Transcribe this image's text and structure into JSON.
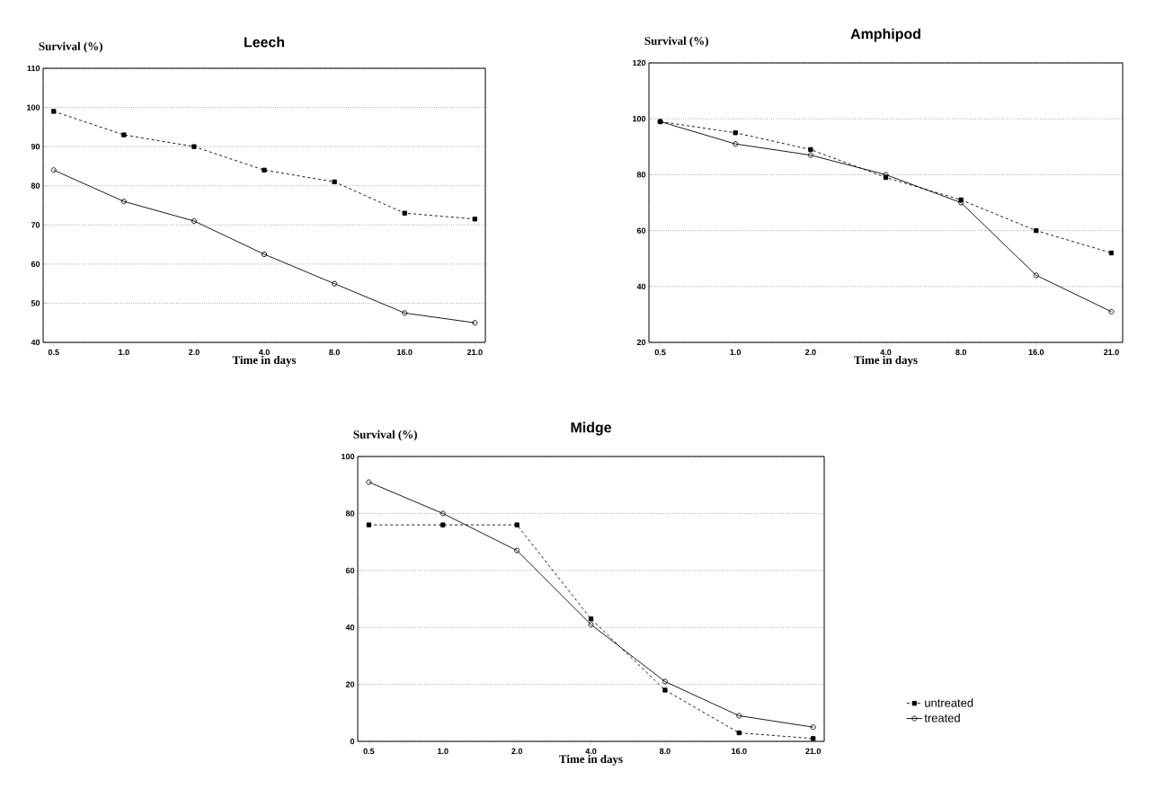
{
  "chart_data": [
    {
      "type": "line",
      "title": "Leech",
      "xlabel": "Time in days",
      "ylabel": "Survival (%)",
      "categories": [
        "0.5",
        "1.0",
        "2.0",
        "4.0",
        "8.0",
        "16.0",
        "21.0"
      ],
      "ylim": [
        40,
        110
      ],
      "yticks": [
        40,
        50,
        60,
        70,
        80,
        90,
        100,
        110
      ],
      "grid": "y",
      "legend": false,
      "series": [
        {
          "color": "#000000",
          "marker": "square",
          "line_style": "dashed",
          "values": [
            99,
            93,
            90,
            84,
            81,
            73,
            71.5
          ]
        },
        {
          "color": "#000000",
          "marker": "circle",
          "line_style": "solid",
          "values": [
            84,
            76,
            71,
            62.5,
            55,
            47.5,
            45
          ]
        }
      ]
    },
    {
      "type": "line",
      "title": "Amphipod",
      "xlabel": "Time in days",
      "ylabel": "Survival (%)",
      "categories": [
        "0.5",
        "1.0",
        "2.0",
        "4.0",
        "8.0",
        "16.0",
        "21.0"
      ],
      "ylim": [
        20,
        120
      ],
      "yticks": [
        20,
        40,
        60,
        80,
        100,
        120
      ],
      "grid": "y",
      "legend": false,
      "series": [
        {
          "color": "#000000",
          "marker": "square",
          "line_style": "dashed",
          "values": [
            99,
            95,
            89,
            79,
            71,
            60,
            52
          ]
        },
        {
          "color": "#000000",
          "marker": "circle",
          "line_style": "solid",
          "values": [
            99,
            91,
            87,
            80,
            70,
            44,
            31
          ]
        }
      ]
    },
    {
      "type": "line",
      "title": "Midge",
      "xlabel": "Time in days",
      "ylabel": "Survival (%)",
      "categories": [
        "0.5",
        "1.0",
        "2.0",
        "4.0",
        "8.0",
        "16.0",
        "21.0"
      ],
      "ylim": [
        0,
        100
      ],
      "yticks": [
        0,
        20,
        40,
        60,
        80,
        100
      ],
      "grid": "y",
      "legend": "bottom right",
      "series": [
        {
          "name": "untreated",
          "color": "#000000",
          "marker": "square",
          "line_style": "dashed",
          "values": [
            76,
            76,
            76,
            43,
            18,
            3,
            1
          ]
        },
        {
          "name": "treated",
          "color": "#000000",
          "marker": "circle",
          "line_style": "solid",
          "values": [
            91,
            80,
            67,
            41,
            21,
            9,
            5
          ]
        }
      ]
    }
  ]
}
